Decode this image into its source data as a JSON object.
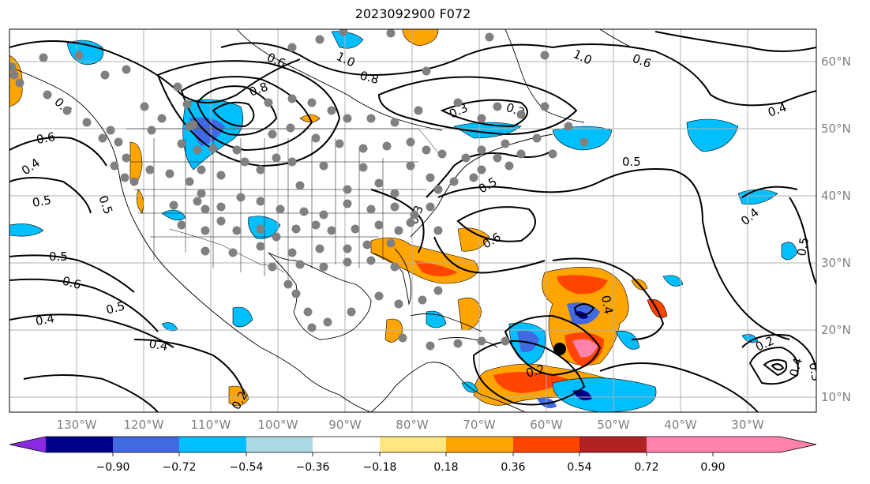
{
  "title": "2023092900 F072",
  "lon_labels": [
    "130°W",
    "120°W",
    "110°W",
    "100°W",
    "90°W",
    "80°W",
    "70°W",
    "60°W",
    "50°W",
    "40°W",
    "30°W"
  ],
  "lat_labels": [
    "60°N",
    "50°N",
    "40°N",
    "30°N",
    "20°N",
    "10°N"
  ],
  "contour_labels": [
    "0.6",
    "1.0",
    "1.0",
    "0.6",
    "0.8",
    "0.8",
    "0.3",
    "0.2",
    "0.4",
    "0.6",
    "0.4",
    "0.5",
    "0.5",
    "0.6",
    "0.5",
    "0.5",
    "0.4",
    "0.4",
    "0.3",
    "0.5",
    "0.6",
    "0.4",
    "0.2",
    "0.4",
    "0.2",
    "0.2",
    "0.4",
    "0.3",
    "0.5",
    "0.4",
    "0.5"
  ],
  "colorbar": {
    "tick_labels": [
      "−0.90",
      "−0.72",
      "−0.54",
      "−0.36",
      "−0.18",
      "0.18",
      "0.36",
      "0.54",
      "0.72",
      "0.90"
    ],
    "colors": [
      "#8a2be2",
      "#00008b",
      "#4169e1",
      "#00bfff",
      "#add8e6",
      "#ffffff",
      "#ffe680",
      "#ffa500",
      "#ff4500",
      "#b22222",
      "#ff82ab"
    ]
  },
  "colors": {
    "coast": "#000000",
    "grid": "#b0b0b0",
    "dots": "#808080",
    "center": "#000000"
  }
}
